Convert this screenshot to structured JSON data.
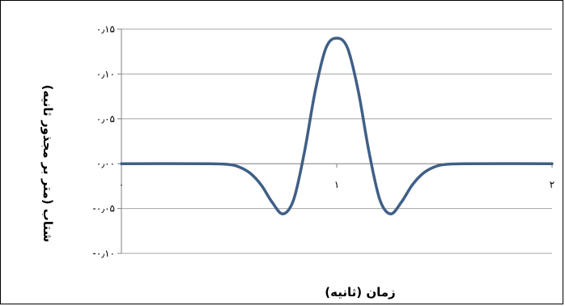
{
  "chart_data": {
    "type": "line",
    "xlabel": "زمان (ثانیه)",
    "ylabel": "شتاب (متر بر مجذور ثانیه)",
    "xlim": [
      0,
      2
    ],
    "ylim": [
      -0.1,
      0.15
    ],
    "x_ticks": [
      {
        "value": 0,
        "label": "۰"
      },
      {
        "value": 1,
        "label": "۱"
      },
      {
        "value": 2,
        "label": "۲"
      }
    ],
    "y_ticks": [
      {
        "value": 0.15,
        "label": "۰٫۱۵"
      },
      {
        "value": 0.1,
        "label": "۰٫۱۰"
      },
      {
        "value": 0.05,
        "label": "۰٫۰۵"
      },
      {
        "value": 0.0,
        "label": "۰٫۰۰"
      },
      {
        "value": -0.05,
        "label": "-۰٫۰۵"
      },
      {
        "value": -0.1,
        "label": "-۰٫۱۰"
      }
    ],
    "grid": true,
    "series": [
      {
        "color": "#3f5f86",
        "x": [
          0,
          0.4,
          0.5,
          0.55,
          0.6,
          0.65,
          0.7,
          0.75,
          0.8,
          0.85,
          0.9,
          0.95,
          1.0,
          1.05,
          1.1,
          1.15,
          1.2,
          1.25,
          1.3,
          1.35,
          1.4,
          1.45,
          1.5,
          1.6,
          2.0
        ],
        "y": [
          0.0,
          0.0,
          -0.001,
          -0.004,
          -0.011,
          -0.024,
          -0.043,
          -0.056,
          -0.04,
          0.013,
          0.081,
          0.129,
          0.14,
          0.129,
          0.081,
          0.013,
          -0.04,
          -0.056,
          -0.043,
          -0.024,
          -0.011,
          -0.004,
          -0.001,
          0.0,
          0.0
        ]
      }
    ]
  }
}
